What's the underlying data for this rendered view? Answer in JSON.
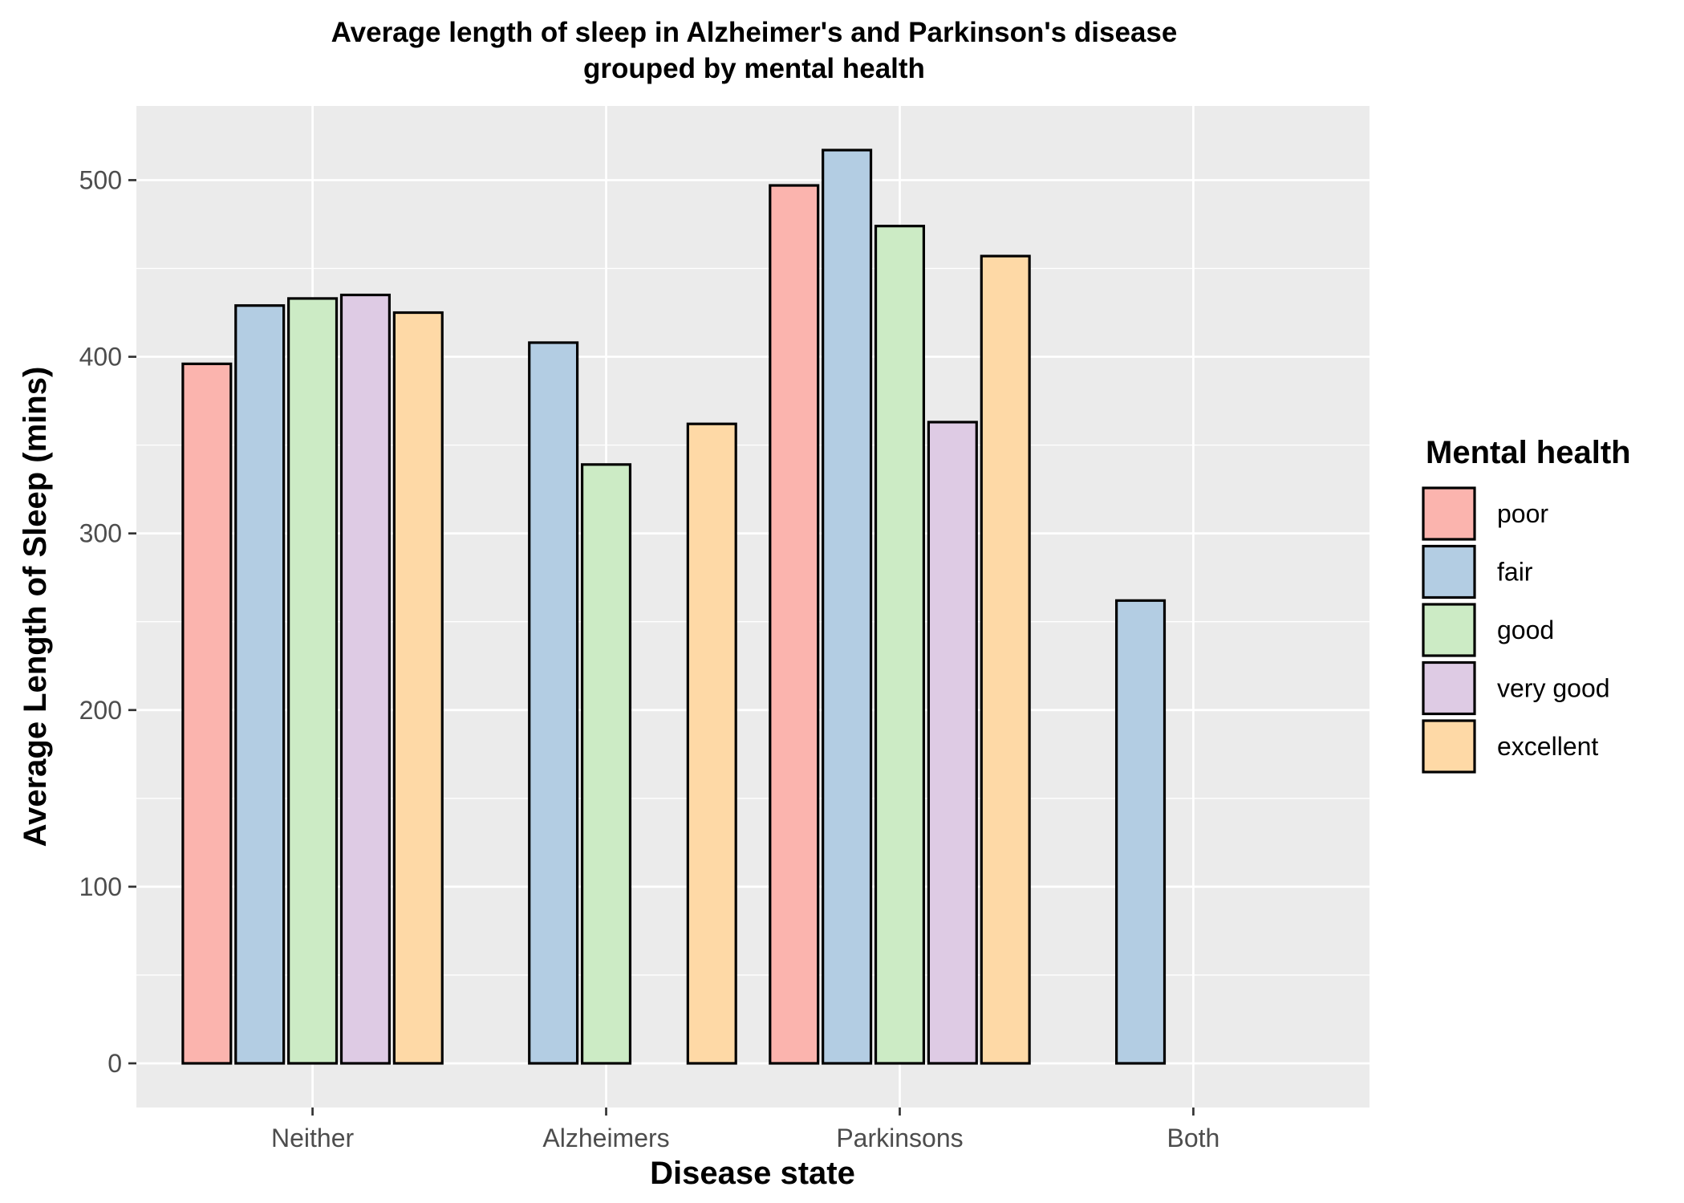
{
  "chart_data": {
    "type": "bar",
    "title_lines": [
      "Average length of sleep in Alzheimer's and Parkinson's disease",
      "grouped by mental health"
    ],
    "xlabel": "Disease state",
    "ylabel": "Average Length of Sleep (mins)",
    "categories": [
      "Neither",
      "Alzheimers",
      "Parkinsons",
      "Both"
    ],
    "ylim": [
      -25,
      542
    ],
    "yticks": [
      0,
      100,
      200,
      300,
      400,
      500
    ],
    "grid": true,
    "legend": {
      "title": "Mental health",
      "position": "right"
    },
    "series": [
      {
        "name": "poor",
        "color": "#FBB4AE",
        "values": [
          396,
          0,
          497,
          0
        ]
      },
      {
        "name": "fair",
        "color": "#B3CDE3",
        "values": [
          429,
          408,
          517,
          262
        ]
      },
      {
        "name": "good",
        "color": "#CCEBC5",
        "values": [
          433,
          339,
          474,
          0
        ]
      },
      {
        "name": "very good",
        "color": "#DECBE4",
        "values": [
          435,
          0,
          363,
          0
        ]
      },
      {
        "name": "excellent",
        "color": "#FED9A6",
        "values": [
          425,
          362,
          457,
          0
        ]
      }
    ],
    "colors": {
      "panel": "#EBEBEB",
      "grid": "#FFFFFF",
      "bar_outline": "#000000"
    }
  }
}
